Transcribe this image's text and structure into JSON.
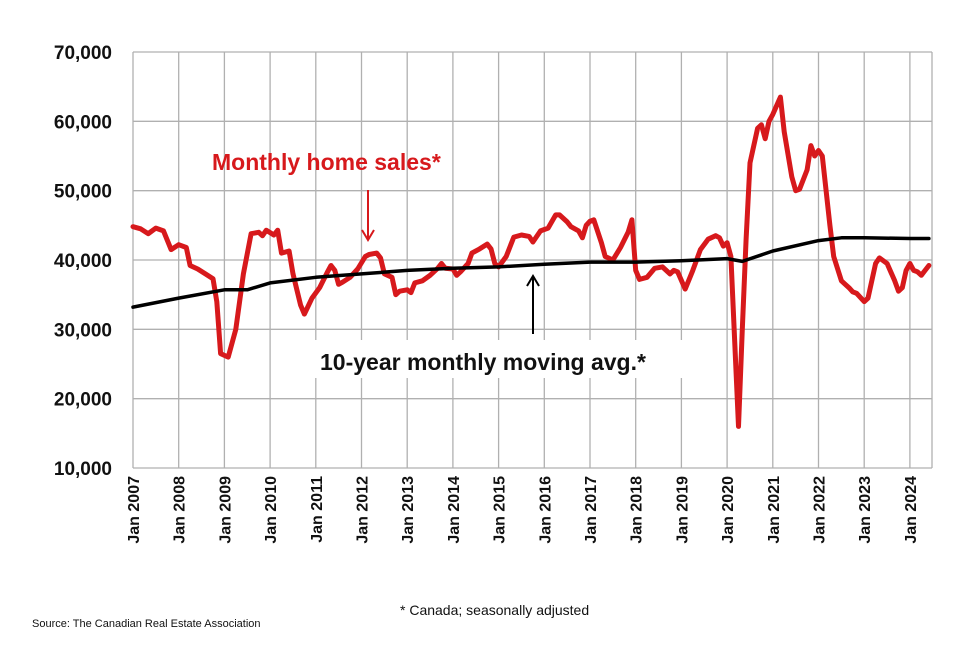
{
  "chart_data": {
    "type": "line",
    "title": "",
    "xlabel": "",
    "ylabel": "",
    "ylim": [
      10000,
      70000
    ],
    "yticks": [
      "10,000",
      "20,000",
      "30,000",
      "40,000",
      "50,000",
      "60,000",
      "70,000"
    ],
    "xlim": [
      "2007-01",
      "2024-06"
    ],
    "xticks": [
      "Jan 2007",
      "Jan 2008",
      "Jan 2009",
      "Jan 2010",
      "Jan 2011",
      "Jan 2012",
      "Jan 2013",
      "Jan 2014",
      "Jan 2015",
      "Jan 2016",
      "Jan 2017",
      "Jan 2018",
      "Jan 2019",
      "Jan 2020",
      "Jan 2021",
      "Jan 2022",
      "Jan 2023",
      "Jan 2024"
    ],
    "grid": true,
    "series": [
      {
        "name": "Monthly home sales*",
        "color": "#d7191c",
        "points": [
          [
            "2007-01",
            44800
          ],
          [
            "2007-03",
            44500
          ],
          [
            "2007-05",
            43800
          ],
          [
            "2007-07",
            44600
          ],
          [
            "2007-09",
            44200
          ],
          [
            "2007-11",
            41500
          ],
          [
            "2008-01",
            42200
          ],
          [
            "2008-03",
            41800
          ],
          [
            "2008-04",
            39200
          ],
          [
            "2008-06",
            38700
          ],
          [
            "2008-08",
            38000
          ],
          [
            "2008-10",
            37300
          ],
          [
            "2008-11",
            34000
          ],
          [
            "2008-12",
            26500
          ],
          [
            "2009-02",
            26000
          ],
          [
            "2009-04",
            30000
          ],
          [
            "2009-06",
            38000
          ],
          [
            "2009-08",
            43800
          ],
          [
            "2009-10",
            44000
          ],
          [
            "2009-11",
            43500
          ],
          [
            "2009-12",
            44300
          ],
          [
            "2010-02",
            43600
          ],
          [
            "2010-03",
            44300
          ],
          [
            "2010-04",
            41000
          ],
          [
            "2010-06",
            41300
          ],
          [
            "2010-07",
            38000
          ],
          [
            "2010-09",
            33500
          ],
          [
            "2010-10",
            32200
          ],
          [
            "2010-12",
            34500
          ],
          [
            "2011-02",
            36000
          ],
          [
            "2011-04",
            38200
          ],
          [
            "2011-05",
            39200
          ],
          [
            "2011-06",
            38500
          ],
          [
            "2011-07",
            36500
          ],
          [
            "2011-08",
            36800
          ],
          [
            "2011-10",
            37500
          ],
          [
            "2011-12",
            38700
          ],
          [
            "2012-02",
            40500
          ],
          [
            "2012-03",
            40800
          ],
          [
            "2012-05",
            41000
          ],
          [
            "2012-06",
            40300
          ],
          [
            "2012-07",
            38000
          ],
          [
            "2012-09",
            37500
          ],
          [
            "2012-10",
            35000
          ],
          [
            "2012-11",
            35500
          ],
          [
            "2013-01",
            35700
          ],
          [
            "2013-02",
            35300
          ],
          [
            "2013-03",
            36700
          ],
          [
            "2013-05",
            37000
          ],
          [
            "2013-07",
            37800
          ],
          [
            "2013-09",
            38800
          ],
          [
            "2013-10",
            39500
          ],
          [
            "2013-11",
            38800
          ],
          [
            "2014-01",
            38700
          ],
          [
            "2014-02",
            37800
          ],
          [
            "2014-03",
            38300
          ],
          [
            "2014-05",
            39500
          ],
          [
            "2014-06",
            41000
          ],
          [
            "2014-08",
            41600
          ],
          [
            "2014-10",
            42300
          ],
          [
            "2014-11",
            41600
          ],
          [
            "2014-12",
            39500
          ],
          [
            "2015-01",
            39000
          ],
          [
            "2015-03",
            40500
          ],
          [
            "2015-05",
            43300
          ],
          [
            "2015-07",
            43600
          ],
          [
            "2015-09",
            43400
          ],
          [
            "2015-10",
            42600
          ],
          [
            "2015-12",
            44200
          ],
          [
            "2016-02",
            44600
          ],
          [
            "2016-04",
            46500
          ],
          [
            "2016-05",
            46500
          ],
          [
            "2016-07",
            45500
          ],
          [
            "2016-08",
            44800
          ],
          [
            "2016-10",
            44200
          ],
          [
            "2016-11",
            43200
          ],
          [
            "2016-12",
            45000
          ],
          [
            "2017-01",
            45600
          ],
          [
            "2017-02",
            45800
          ],
          [
            "2017-04",
            42500
          ],
          [
            "2017-05",
            40500
          ],
          [
            "2017-07",
            40000
          ],
          [
            "2017-09",
            41800
          ],
          [
            "2017-11",
            44000
          ],
          [
            "2017-12",
            45800
          ],
          [
            "2018-01",
            38500
          ],
          [
            "2018-02",
            37200
          ],
          [
            "2018-04",
            37500
          ],
          [
            "2018-06",
            38800
          ],
          [
            "2018-08",
            39000
          ],
          [
            "2018-10",
            38000
          ],
          [
            "2018-11",
            38500
          ],
          [
            "2018-12",
            38300
          ],
          [
            "2019-02",
            35800
          ],
          [
            "2019-04",
            38500
          ],
          [
            "2019-06",
            41500
          ],
          [
            "2019-08",
            43000
          ],
          [
            "2019-10",
            43500
          ],
          [
            "2019-11",
            43200
          ],
          [
            "2019-12",
            42000
          ],
          [
            "2020-01",
            42500
          ],
          [
            "2020-02",
            40500
          ],
          [
            "2020-04",
            16000
          ],
          [
            "2020-05",
            30000
          ],
          [
            "2020-06",
            43000
          ],
          [
            "2020-07",
            54000
          ],
          [
            "2020-09",
            59000
          ],
          [
            "2020-10",
            59500
          ],
          [
            "2020-11",
            57500
          ],
          [
            "2020-12",
            60000
          ],
          [
            "2021-01",
            61000
          ],
          [
            "2021-03",
            63500
          ],
          [
            "2021-04",
            58500
          ],
          [
            "2021-06",
            52000
          ],
          [
            "2021-07",
            50000
          ],
          [
            "2021-08",
            50200
          ],
          [
            "2021-10",
            53000
          ],
          [
            "2021-11",
            56500
          ],
          [
            "2021-12",
            55000
          ],
          [
            "2022-01",
            55800
          ],
          [
            "2022-02",
            55000
          ],
          [
            "2022-04",
            45000
          ],
          [
            "2022-05",
            40500
          ],
          [
            "2022-07",
            37000
          ],
          [
            "2022-08",
            36500
          ],
          [
            "2022-09",
            36000
          ],
          [
            "2022-10",
            35400
          ],
          [
            "2022-11",
            35200
          ],
          [
            "2023-01",
            34000
          ],
          [
            "2023-02",
            34500
          ],
          [
            "2023-04",
            39500
          ],
          [
            "2023-05",
            40300
          ],
          [
            "2023-07",
            39500
          ],
          [
            "2023-09",
            37000
          ],
          [
            "2023-10",
            35500
          ],
          [
            "2023-11",
            36000
          ],
          [
            "2023-12",
            38500
          ],
          [
            "2024-01",
            39500
          ],
          [
            "2024-02",
            38500
          ],
          [
            "2024-03",
            38300
          ],
          [
            "2024-04",
            37800
          ],
          [
            "2024-05",
            38500
          ],
          [
            "2024-06",
            39200
          ]
        ]
      },
      {
        "name": "10-year monthly moving avg.*",
        "color": "#000000",
        "points": [
          [
            "2007-01",
            33200
          ],
          [
            "2008-01",
            34500
          ],
          [
            "2009-01",
            35700
          ],
          [
            "2009-07",
            35700
          ],
          [
            "2010-01",
            36700
          ],
          [
            "2011-01",
            37500
          ],
          [
            "2012-01",
            38000
          ],
          [
            "2013-01",
            38500
          ],
          [
            "2014-01",
            38800
          ],
          [
            "2015-01",
            39000
          ],
          [
            "2016-01",
            39400
          ],
          [
            "2017-01",
            39700
          ],
          [
            "2018-01",
            39700
          ],
          [
            "2019-01",
            39900
          ],
          [
            "2020-01",
            40200
          ],
          [
            "2020-05",
            39800
          ],
          [
            "2021-01",
            41300
          ],
          [
            "2022-01",
            42800
          ],
          [
            "2022-07",
            43200
          ],
          [
            "2023-01",
            43200
          ],
          [
            "2024-01",
            43100
          ],
          [
            "2024-06",
            43100
          ]
        ]
      }
    ],
    "annotations": {
      "sales_label": "Monthly home sales*",
      "avg_label": "10-year monthly moving avg.*"
    }
  },
  "footnote": "* Canada; seasonally adjusted",
  "source": "Source: The Canadian Real Estate Association"
}
